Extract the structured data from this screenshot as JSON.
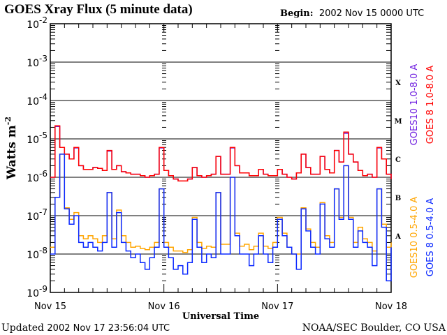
{
  "header": {
    "title": "GOES Xray Flux (5 minute data)",
    "begin_label": "Begin:",
    "begin_value": "2002 Nov 15 0000 UTC"
  },
  "footer": {
    "updated_label": "Updated",
    "updated_value": "2002 Nov 17 23:56:04 UTC",
    "credit": "NOAA/SEC Boulder, CO USA"
  },
  "chart_data": {
    "type": "line",
    "title": "GOES Xray Flux (5 minute data)",
    "xlabel": "Universal Time",
    "ylabel": "Watts m",
    "ylabel_exponent": "-2",
    "y_scale": "log",
    "ylim": [
      1e-09,
      0.01
    ],
    "xlim": [
      "2002-11-15T00",
      "2002-11-18T00"
    ],
    "x_tick_labels": [
      "Nov 15",
      "Nov 16",
      "Nov 17",
      "Nov 18"
    ],
    "y_tick_labels": [
      {
        "base": "10",
        "exp": "-2",
        "value": 0.01
      },
      {
        "base": "10",
        "exp": "-3",
        "value": 0.001
      },
      {
        "base": "10",
        "exp": "-4",
        "value": 0.0001
      },
      {
        "base": "10",
        "exp": "-5",
        "value": 1e-05
      },
      {
        "base": "10",
        "exp": "-6",
        "value": 1e-06
      },
      {
        "base": "10",
        "exp": "-7",
        "value": 1e-07
      },
      {
        "base": "10",
        "exp": "-8",
        "value": 1e-08
      },
      {
        "base": "10",
        "exp": "-9",
        "value": 1e-09
      }
    ],
    "flare_classes": [
      {
        "label": "X",
        "value": 0.0003
      },
      {
        "label": "M",
        "value": 3e-05
      },
      {
        "label": "C",
        "value": 3e-06
      },
      {
        "label": "B",
        "value": 3e-07
      },
      {
        "label": "A",
        "value": 3e-08
      }
    ],
    "grid": "horizontal at decades",
    "legend_placement": "right, vertical",
    "x": [
      "2002-11-15T00",
      "2002-11-15T01",
      "2002-11-15T02",
      "2002-11-15T03",
      "2002-11-15T04",
      "2002-11-15T05",
      "2002-11-15T06",
      "2002-11-15T07",
      "2002-11-15T08",
      "2002-11-15T09",
      "2002-11-15T10",
      "2002-11-15T11",
      "2002-11-15T12",
      "2002-11-15T13",
      "2002-11-15T14",
      "2002-11-15T15",
      "2002-11-15T16",
      "2002-11-15T17",
      "2002-11-15T18",
      "2002-11-15T19",
      "2002-11-15T20",
      "2002-11-15T21",
      "2002-11-15T22",
      "2002-11-15T23",
      "2002-11-16T00",
      "2002-11-16T01",
      "2002-11-16T02",
      "2002-11-16T03",
      "2002-11-16T04",
      "2002-11-16T05",
      "2002-11-16T06",
      "2002-11-16T07",
      "2002-11-16T08",
      "2002-11-16T09",
      "2002-11-16T10",
      "2002-11-16T11",
      "2002-11-16T12",
      "2002-11-16T13",
      "2002-11-16T14",
      "2002-11-16T15",
      "2002-11-16T16",
      "2002-11-16T17",
      "2002-11-16T18",
      "2002-11-16T19",
      "2002-11-16T20",
      "2002-11-16T21",
      "2002-11-16T22",
      "2002-11-16T23",
      "2002-11-17T00",
      "2002-11-17T01",
      "2002-11-17T02",
      "2002-11-17T03",
      "2002-11-17T04",
      "2002-11-17T05",
      "2002-11-17T06",
      "2002-11-17T07",
      "2002-11-17T08",
      "2002-11-17T09",
      "2002-11-17T10",
      "2002-11-17T11",
      "2002-11-17T12",
      "2002-11-17T13",
      "2002-11-17T14",
      "2002-11-17T15",
      "2002-11-17T16",
      "2002-11-17T17",
      "2002-11-17T18",
      "2002-11-17T19",
      "2002-11-17T20",
      "2002-11-17T21",
      "2002-11-17T22",
      "2002-11-17T23",
      "2002-11-18T00"
    ],
    "series": [
      {
        "name": "GOES10 1.0-8.0 A",
        "color": "#7020e0",
        "values": [
          1e-06,
          2.1e-05,
          6e-06,
          4e-06,
          3e-06,
          5.8e-06,
          2e-06,
          1.6e-06,
          1.6e-06,
          1.8e-06,
          1.7e-06,
          1.5e-06,
          4.8e-06,
          1.6e-06,
          2e-06,
          1.4e-06,
          1.3e-06,
          1.2e-06,
          1.2e-06,
          1.1e-06,
          1e-06,
          1.1e-06,
          1.2e-06,
          5.8e-06,
          1.5e-06,
          1.1e-06,
          9e-07,
          8e-07,
          8e-07,
          9e-07,
          1.8e-06,
          1.1e-06,
          1e-06,
          1.1e-06,
          1.2e-06,
          3.5e-06,
          1.2e-06,
          1.2e-06,
          5.8e-06,
          2e-06,
          1.3e-06,
          1.3e-06,
          1.1e-06,
          1.1e-06,
          1.6e-06,
          1.2e-06,
          1.1e-06,
          1.1e-06,
          1.6e-06,
          1.2e-06,
          1e-06,
          9e-07,
          1.3e-06,
          4e-06,
          1.8e-06,
          1.2e-06,
          1.2e-06,
          3.5e-06,
          1.6e-06,
          1.3e-06,
          5e-06,
          2.5e-06,
          1.4e-05,
          4e-06,
          2.5e-06,
          1.5e-06,
          1.1e-06,
          1.2e-06,
          1e-06,
          5.8e-06,
          3e-06,
          1.2e-06,
          9e-07
        ]
      },
      {
        "name": "GOES 8 1.0-8.0 A",
        "color": "#ff0000",
        "values": [
          1e-06,
          2.2e-05,
          6e-06,
          4e-06,
          3e-06,
          6e-06,
          2e-06,
          1.6e-06,
          1.6e-06,
          1.8e-06,
          1.7e-06,
          1.5e-06,
          5e-06,
          1.6e-06,
          2e-06,
          1.4e-06,
          1.3e-06,
          1.2e-06,
          1.2e-06,
          1.1e-06,
          1e-06,
          1.1e-06,
          1.2e-06,
          6e-06,
          1.5e-06,
          1.1e-06,
          9e-07,
          8e-07,
          8e-07,
          9e-07,
          1.8e-06,
          1.1e-06,
          1e-06,
          1.1e-06,
          1.2e-06,
          3.5e-06,
          1.2e-06,
          1.2e-06,
          6e-06,
          2e-06,
          1.3e-06,
          1.3e-06,
          1.1e-06,
          1.1e-06,
          1.6e-06,
          1.2e-06,
          1.1e-06,
          1.1e-06,
          1.6e-06,
          1.2e-06,
          1e-06,
          9e-07,
          1.3e-06,
          4e-06,
          1.8e-06,
          1.2e-06,
          1.2e-06,
          3.5e-06,
          1.6e-06,
          1.3e-06,
          5e-06,
          2.5e-06,
          1.5e-05,
          4e-06,
          2.5e-06,
          1.5e-06,
          1.1e-06,
          1.2e-06,
          1e-06,
          6e-06,
          3e-06,
          1.2e-06,
          9e-07
        ]
      },
      {
        "name": "GOES10 0.5-4.0 A",
        "color": "#ffa500",
        "values": [
          1.5e-08,
          3e-07,
          4e-06,
          1.6e-07,
          8e-08,
          1.2e-07,
          3e-08,
          2.5e-08,
          3e-08,
          2.5e-08,
          2e-08,
          3e-08,
          4e-07,
          2.5e-08,
          1.4e-07,
          3e-08,
          2e-08,
          1.5e-08,
          1.6e-08,
          1.4e-08,
          1.3e-08,
          1.5e-08,
          2e-08,
          5e-07,
          2e-08,
          1.5e-08,
          1.2e-08,
          1.2e-08,
          1.1e-08,
          1.3e-08,
          9e-08,
          2e-08,
          1.4e-08,
          1.6e-08,
          1.5e-08,
          4e-07,
          1.8e-08,
          1.8e-08,
          1e-06,
          3.5e-08,
          1.6e-08,
          1.8e-08,
          1.3e-08,
          1.6e-08,
          3.5e-08,
          1.6e-08,
          1.4e-08,
          2e-08,
          9e-08,
          3.5e-08,
          1.5e-08,
          1e-08,
          1e-08,
          1.6e-07,
          4.5e-08,
          2e-08,
          1.5e-08,
          2.2e-07,
          3e-08,
          2e-08,
          5e-07,
          9e-08,
          2e-06,
          9e-08,
          2e-08,
          5e-08,
          2.5e-08,
          2e-08,
          1.2e-08,
          5e-07,
          6e-08,
          1.5e-08,
          2e-08
        ]
      },
      {
        "name": "GOES 8 0.5-4.0 A",
        "color": "#0a28ff",
        "values": [
          1e-08,
          3e-07,
          4e-06,
          1.5e-07,
          6e-08,
          1e-07,
          2e-08,
          1.5e-08,
          2e-08,
          1.5e-08,
          1.2e-08,
          2e-08,
          4e-07,
          1.5e-08,
          1.2e-07,
          2e-08,
          1.2e-08,
          8e-09,
          1e-08,
          6e-09,
          4e-09,
          8e-09,
          1.5e-08,
          5e-07,
          1.5e-08,
          8e-09,
          4e-09,
          5e-09,
          3e-09,
          6e-09,
          8e-08,
          1.5e-08,
          6e-09,
          1e-08,
          8e-09,
          4e-07,
          1e-08,
          1e-08,
          1e-06,
          3e-08,
          1e-08,
          1e-08,
          5e-09,
          1e-08,
          3e-08,
          1e-08,
          6e-09,
          1.5e-08,
          8e-08,
          3e-08,
          1.5e-08,
          1e-08,
          4e-09,
          1.5e-07,
          4e-08,
          1.5e-08,
          1e-08,
          2e-07,
          2.5e-08,
          1.5e-08,
          5e-07,
          8e-08,
          2e-06,
          8e-08,
          1.5e-08,
          4e-08,
          2e-08,
          1.5e-08,
          5e-09,
          5e-07,
          5e-08,
          2e-09,
          1.5e-08
        ]
      }
    ]
  }
}
